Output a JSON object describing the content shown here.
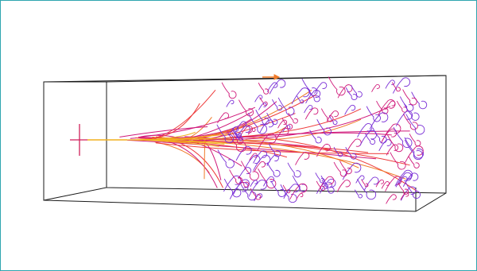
{
  "viewer": {
    "frame_color": "#2fa6b0",
    "detector_box_color": "#1a1a1a",
    "beam_color": "#f2b01e",
    "track_colors": [
      "#f2b01e",
      "#f07a28",
      "#ee3b3b",
      "#d0197a",
      "#7a2fd6"
    ],
    "curl_color": "#7a2fd6",
    "source_marker_color": "#d01f5a",
    "icons": [
      "cross-marker-icon",
      "direction-arrow-icon"
    ]
  }
}
